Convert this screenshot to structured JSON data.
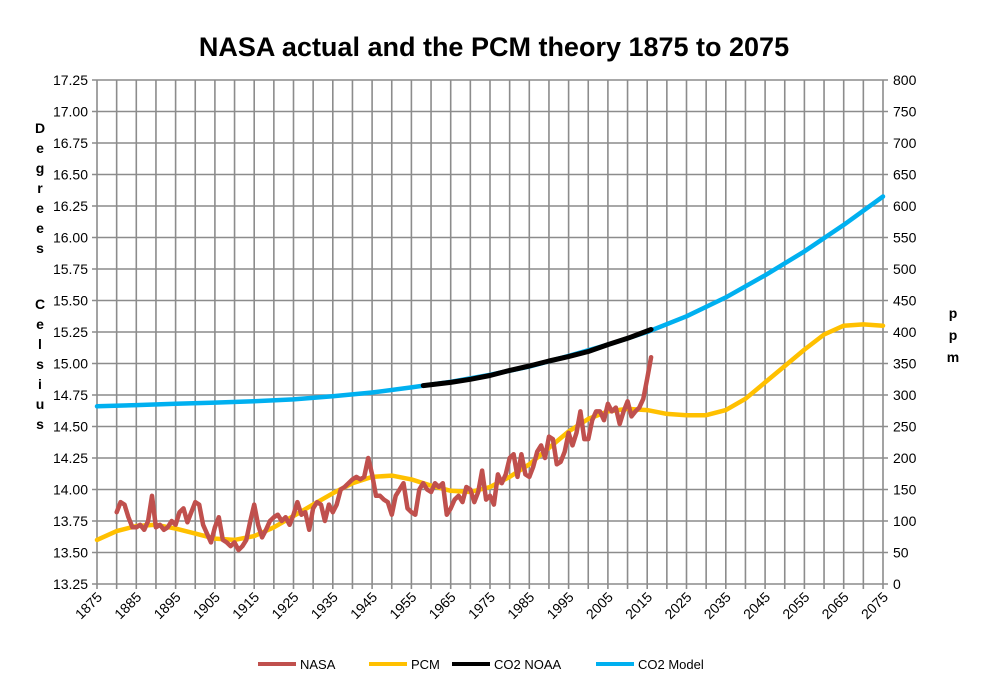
{
  "chart_data": {
    "type": "line",
    "title": "NASA actual and the PCM theory 1875 to 2075",
    "ylabel": "Degrees Celsius",
    "y2label": "ppm",
    "xlim": [
      1875,
      2075
    ],
    "ylim": [
      13.25,
      17.25
    ],
    "y2lim": [
      0,
      800
    ],
    "grid": true,
    "legend_placement": "bottom",
    "x_ticks": [
      "1875",
      "1885",
      "1895",
      "1905",
      "1915",
      "1925",
      "1935",
      "1945",
      "1955",
      "1965",
      "1975",
      "1985",
      "1995",
      "2005",
      "2015",
      "2025",
      "2035",
      "2045",
      "2055",
      "2065",
      "2075"
    ],
    "y_ticks": [
      "13.25",
      "13.50",
      "13.75",
      "14.00",
      "14.25",
      "14.50",
      "14.75",
      "15.00",
      "15.25",
      "15.50",
      "15.75",
      "16.00",
      "16.25",
      "16.50",
      "16.75",
      "17.00",
      "17.25"
    ],
    "y2_ticks": [
      "0",
      "50",
      "100",
      "150",
      "200",
      "250",
      "300",
      "350",
      "400",
      "450",
      "500",
      "550",
      "600",
      "650",
      "700",
      "750",
      "800"
    ],
    "series": [
      {
        "name": "NASA",
        "axis": "left",
        "color": "#C0504D",
        "x": [
          1880,
          1881,
          1882,
          1883,
          1884,
          1885,
          1886,
          1887,
          1888,
          1889,
          1890,
          1891,
          1892,
          1893,
          1894,
          1895,
          1896,
          1897,
          1898,
          1899,
          1900,
          1901,
          1902,
          1903,
          1904,
          1905,
          1906,
          1907,
          1908,
          1909,
          1910,
          1911,
          1912,
          1913,
          1914,
          1915,
          1916,
          1917,
          1918,
          1919,
          1920,
          1921,
          1922,
          1923,
          1924,
          1925,
          1926,
          1927,
          1928,
          1929,
          1930,
          1931,
          1932,
          1933,
          1934,
          1935,
          1936,
          1937,
          1938,
          1939,
          1940,
          1941,
          1942,
          1943,
          1944,
          1945,
          1946,
          1947,
          1948,
          1949,
          1950,
          1951,
          1952,
          1953,
          1954,
          1955,
          1956,
          1957,
          1958,
          1959,
          1960,
          1961,
          1962,
          1963,
          1964,
          1965,
          1966,
          1967,
          1968,
          1969,
          1970,
          1971,
          1972,
          1973,
          1974,
          1975,
          1976,
          1977,
          1978,
          1979,
          1980,
          1981,
          1982,
          1983,
          1984,
          1985,
          1986,
          1987,
          1988,
          1989,
          1990,
          1991,
          1992,
          1993,
          1994,
          1995,
          1996,
          1997,
          1998,
          1999,
          2000,
          2001,
          2002,
          2003,
          2004,
          2005,
          2006,
          2007,
          2008,
          2009,
          2010,
          2011,
          2012,
          2013,
          2014,
          2015,
          2016
        ],
        "y": [
          13.82,
          13.9,
          13.88,
          13.78,
          13.7,
          13.7,
          13.72,
          13.68,
          13.75,
          13.95,
          13.7,
          13.72,
          13.68,
          13.7,
          13.75,
          13.72,
          13.82,
          13.85,
          13.74,
          13.82,
          13.9,
          13.88,
          13.72,
          13.65,
          13.58,
          13.7,
          13.78,
          13.6,
          13.58,
          13.55,
          13.58,
          13.52,
          13.55,
          13.6,
          13.75,
          13.88,
          13.72,
          13.62,
          13.68,
          13.75,
          13.78,
          13.8,
          13.75,
          13.78,
          13.72,
          13.8,
          13.9,
          13.8,
          13.82,
          13.68,
          13.85,
          13.9,
          13.88,
          13.75,
          13.88,
          13.82,
          13.88,
          14.0,
          14.02,
          14.05,
          14.08,
          14.1,
          14.08,
          14.1,
          14.25,
          14.12,
          13.95,
          13.95,
          13.92,
          13.9,
          13.8,
          13.95,
          14.0,
          14.05,
          13.85,
          13.82,
          13.8,
          14.0,
          14.05,
          14.0,
          13.98,
          14.05,
          14.02,
          14.05,
          13.8,
          13.85,
          13.92,
          13.95,
          13.9,
          14.02,
          14.0,
          13.9,
          13.98,
          14.15,
          13.92,
          13.95,
          13.88,
          14.12,
          14.05,
          14.12,
          14.25,
          14.28,
          14.1,
          14.28,
          14.12,
          14.1,
          14.18,
          14.3,
          14.35,
          14.25,
          14.42,
          14.4,
          14.2,
          14.22,
          14.3,
          14.45,
          14.35,
          14.45,
          14.62,
          14.4,
          14.4,
          14.55,
          14.62,
          14.62,
          14.55,
          14.68,
          14.62,
          14.65,
          14.52,
          14.62,
          14.7,
          14.58,
          14.62,
          14.65,
          14.72,
          14.88,
          15.05
        ]
      },
      {
        "name": "PCM",
        "axis": "left",
        "color": "#FFC000",
        "x": [
          1875,
          1880,
          1885,
          1890,
          1895,
          1900,
          1905,
          1910,
          1915,
          1920,
          1925,
          1930,
          1935,
          1940,
          1945,
          1950,
          1955,
          1960,
          1965,
          1970,
          1975,
          1980,
          1985,
          1990,
          1995,
          2000,
          2005,
          2010,
          2015,
          2020,
          2025,
          2030,
          2035,
          2040,
          2045,
          2050,
          2055,
          2060,
          2065,
          2070,
          2075
        ],
        "y": [
          13.6,
          13.67,
          13.71,
          13.72,
          13.69,
          13.65,
          13.61,
          13.6,
          13.63,
          13.7,
          13.79,
          13.88,
          13.97,
          14.05,
          14.1,
          14.11,
          14.08,
          14.03,
          13.99,
          13.98,
          14.02,
          14.1,
          14.2,
          14.33,
          14.46,
          14.56,
          14.62,
          14.64,
          14.63,
          14.6,
          14.59,
          14.59,
          14.63,
          14.72,
          14.85,
          14.98,
          15.11,
          15.23,
          15.3,
          15.31,
          15.3
        ]
      },
      {
        "name": "CO2 NOAA",
        "axis": "right",
        "color": "#000000",
        "x": [
          1958,
          1965,
          1970,
          1975,
          1980,
          1985,
          1990,
          1995,
          2000,
          2005,
          2010,
          2016
        ],
        "y": [
          315,
          320,
          325,
          331,
          339,
          346,
          354,
          361,
          369,
          380,
          390,
          404
        ]
      },
      {
        "name": "CO2 Model",
        "axis": "right",
        "color": "#00B0F0",
        "x": [
          1875,
          1885,
          1895,
          1905,
          1915,
          1925,
          1935,
          1945,
          1955,
          1965,
          1975,
          1985,
          1995,
          2005,
          2015,
          2025,
          2035,
          2045,
          2055,
          2065,
          2075
        ],
        "y": [
          282,
          284,
          286,
          288,
          290,
          293,
          298,
          304,
          312,
          321,
          332,
          345,
          362,
          380,
          400,
          425,
          455,
          490,
          528,
          570,
          615
        ]
      }
    ]
  }
}
